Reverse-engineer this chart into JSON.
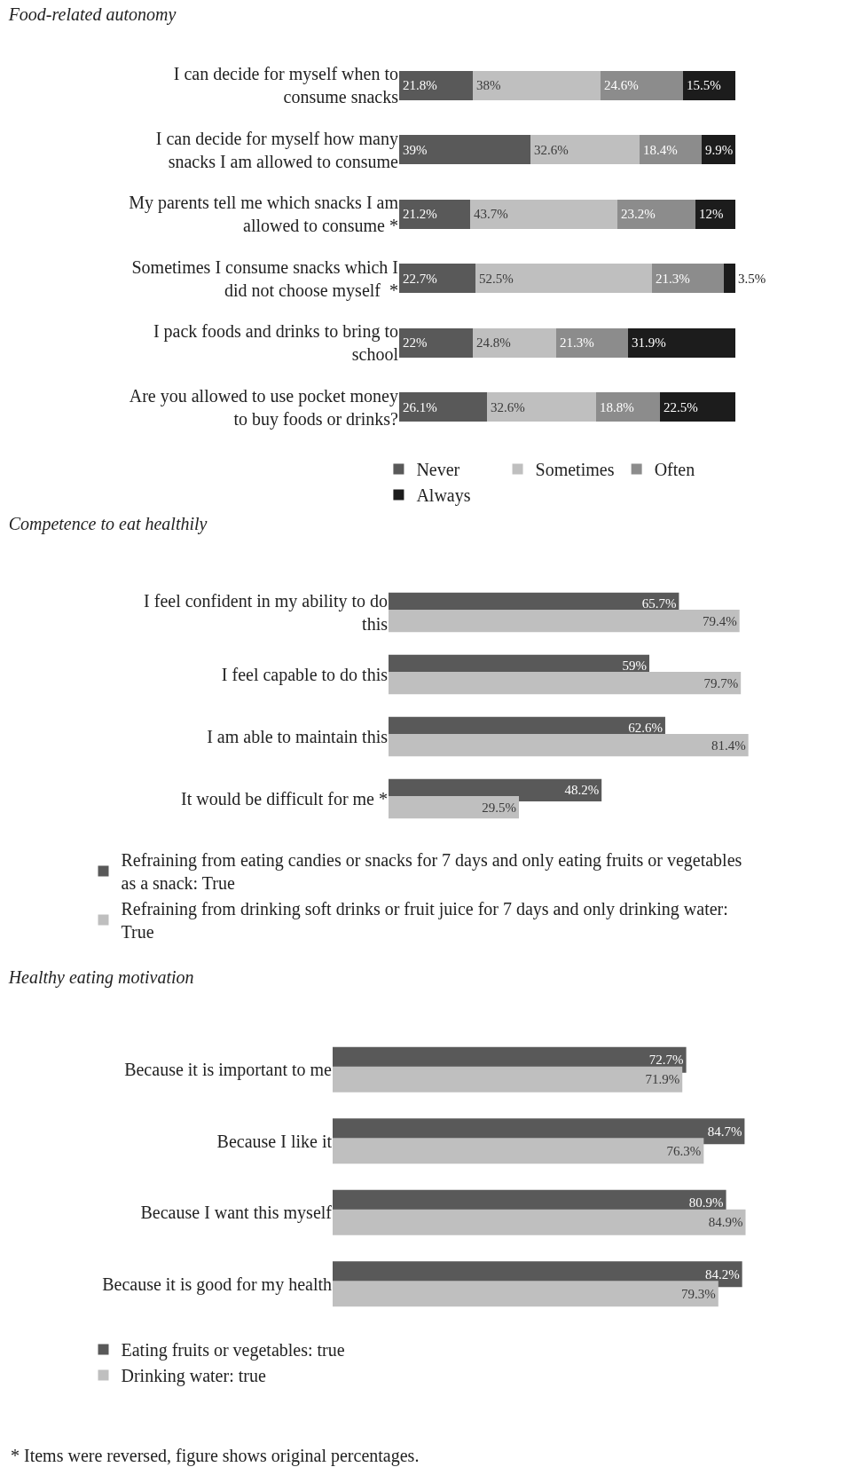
{
  "chart_data": [
    {
      "type": "bar",
      "title": "Food-related autonomy",
      "orientation": "horizontal",
      "stacked": true,
      "legend": "bottom",
      "tick_labels": "y",
      "categories": [
        "I can decide for myself when to consume snacks",
        "I can decide for myself how many snacks I am allowed to consume",
        "My parents tell me which snacks I am allowed to consume *",
        "Sometimes I consume snacks which I did not choose myself  *",
        "I pack foods and drinks to bring to school",
        "Are you allowed to use pocket money to buy foods or drinks?"
      ],
      "series": [
        {
          "name": "Never",
          "color": "#595959",
          "values": [
            21.8,
            39,
            21.2,
            22.7,
            22,
            26.1
          ],
          "value_labels": [
            "21.8%",
            "39%",
            "21.2%",
            "22.7%",
            "22%",
            "26.1%"
          ]
        },
        {
          "name": "Sometimes",
          "color": "#bfbfbf",
          "values": [
            38,
            32.6,
            43.7,
            52.5,
            24.8,
            32.6
          ],
          "value_labels": [
            "38%",
            "32.6%",
            "43.7%",
            "52.5%",
            "24.8%",
            "32.6%"
          ]
        },
        {
          "name": "Often",
          "color": "#8c8c8c",
          "values": [
            24.6,
            18.4,
            23.2,
            21.3,
            21.3,
            18.8
          ],
          "value_labels": [
            "24.6%",
            "18.4%",
            "23.2%",
            "21.3%",
            "21.3%",
            "18.8%"
          ]
        },
        {
          "name": "Always",
          "color": "#1c1c1c",
          "values": [
            15.5,
            9.9,
            12,
            3.5,
            31.9,
            22.5
          ],
          "value_labels": [
            "15.5%",
            "9.9%",
            "12%",
            "3.5%",
            "31.9%",
            "22.5%"
          ]
        }
      ]
    },
    {
      "type": "bar",
      "title": "Competence to eat healthily",
      "orientation": "horizontal",
      "legend": "bottom",
      "tick_labels": "y",
      "categories": [
        "I feel confident in my ability to do this",
        "I feel capable to do this",
        "I am able to maintain this",
        "It would be difficult for me *"
      ],
      "series": [
        {
          "name": "Refraining from eating candies or snacks for 7 days and only eating fruits or vegetables as a snack: True",
          "color": "#595959",
          "values": [
            65.7,
            59,
            62.6,
            48.2
          ],
          "value_labels": [
            "65.7%",
            "59%",
            "62.6%",
            "48.2%"
          ]
        },
        {
          "name": "Refraining from drinking soft drinks or fruit juice for 7 days and only drinking water: True",
          "color": "#bfbfbf",
          "values": [
            79.4,
            79.7,
            81.4,
            29.5
          ],
          "value_labels": [
            "79.4%",
            "79.7%",
            "81.4%",
            "29.5%"
          ]
        }
      ]
    },
    {
      "type": "bar",
      "title": "Healthy eating motivation",
      "orientation": "horizontal",
      "legend": "bottom",
      "tick_labels": "y",
      "categories": [
        "Because it is important to me",
        "Because I like it",
        "Because I want this myself",
        "Because it is good for my health"
      ],
      "annotations": [
        "* Items were reversed, figure shows original percentages."
      ],
      "series": [
        {
          "name": "Eating fruits or vegetables: true",
          "color": "#595959",
          "values": [
            72.7,
            84.7,
            80.9,
            84.2
          ],
          "value_labels": [
            "72.7%",
            "84.7%",
            "80.9%",
            "84.2%"
          ]
        },
        {
          "name": "Drinking water: true",
          "color": "#bfbfbf",
          "values": [
            71.9,
            76.3,
            84.9,
            79.3
          ],
          "value_labels": [
            "71.9%",
            "76.3%",
            "84.9%",
            "79.3%"
          ]
        }
      ]
    }
  ]
}
